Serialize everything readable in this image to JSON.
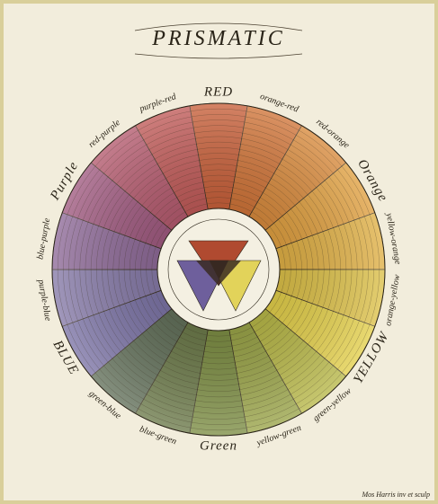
{
  "title": "PRISMATIC",
  "labels": [
    "RED",
    "orange-red",
    "red-orange",
    "Orange",
    "yellow-orange",
    "orange-yellow",
    "YELLOW",
    "green-yellow",
    "yellow-green",
    "Green",
    "blue-green",
    "green-blue",
    "BLUE",
    "purple-blue",
    "blue-purple",
    "Purple",
    "red-purple",
    "purple-red"
  ],
  "signature": "Mos Harris inv et sculp"
}
